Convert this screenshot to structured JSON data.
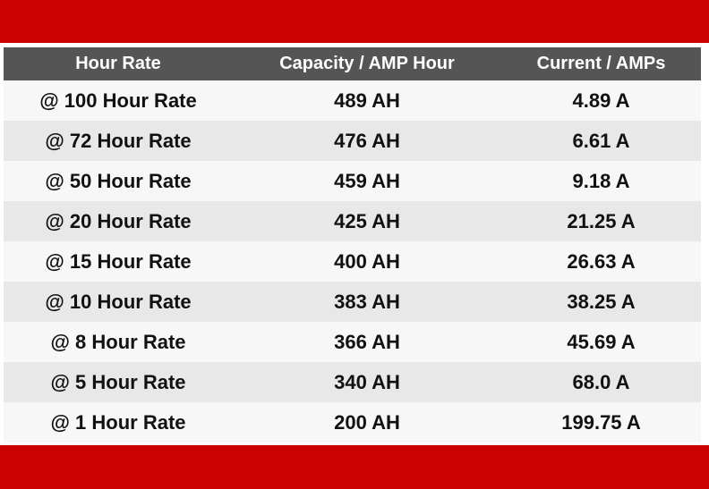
{
  "colors": {
    "band": "#cc0000",
    "header_bg": "#555555",
    "row_light": "#f7f7f7",
    "row_dark": "#e8e8e8"
  },
  "table": {
    "headers": [
      "Hour Rate",
      "Capacity / AMP Hour",
      "Current / AMPs"
    ],
    "rows": [
      [
        "@ 100 Hour Rate",
        "489 AH",
        "4.89 A"
      ],
      [
        "@ 72 Hour Rate",
        "476 AH",
        "6.61 A"
      ],
      [
        "@ 50 Hour Rate",
        "459 AH",
        "9.18 A"
      ],
      [
        "@ 20 Hour Rate",
        "425 AH",
        "21.25 A"
      ],
      [
        "@ 15 Hour Rate",
        "400 AH",
        "26.63 A"
      ],
      [
        "@ 10 Hour Rate",
        "383 AH",
        "38.25 A"
      ],
      [
        "@ 8 Hour Rate",
        "366 AH",
        "45.69 A"
      ],
      [
        "@ 5 Hour Rate",
        "340 AH",
        "68.0 A"
      ],
      [
        "@ 1 Hour Rate",
        "200 AH",
        "199.75 A"
      ]
    ]
  }
}
